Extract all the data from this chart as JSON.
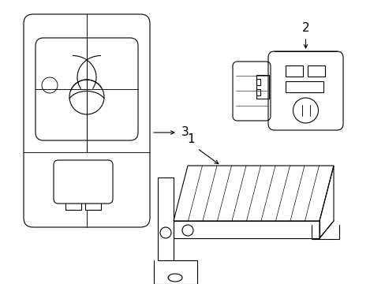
{
  "background_color": "#ffffff",
  "line_color": "#000000",
  "line_width": 0.8,
  "fig_width": 4.89,
  "fig_height": 3.6,
  "dpi": 100,
  "label_1": "1",
  "label_2": "2",
  "label_3": "3"
}
